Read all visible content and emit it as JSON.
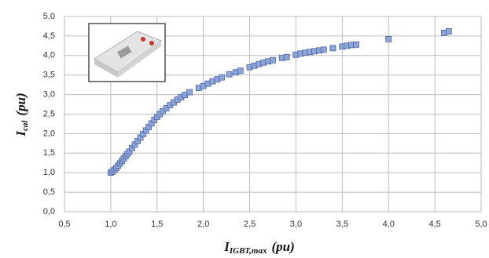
{
  "chart_data": {
    "type": "scatter",
    "xlabel": {
      "main": "I",
      "sub": "IGBT,max",
      "unit": "(pu)"
    },
    "ylabel": {
      "main": "I",
      "sub": "cal",
      "unit": "(pu)"
    },
    "x": [
      1.0,
      1.02,
      1.04,
      1.06,
      1.08,
      1.1,
      1.12,
      1.14,
      1.16,
      1.18,
      1.2,
      1.23,
      1.26,
      1.29,
      1.32,
      1.35,
      1.38,
      1.41,
      1.44,
      1.47,
      1.5,
      1.53,
      1.56,
      1.6,
      1.64,
      1.68,
      1.72,
      1.76,
      1.8,
      1.85,
      1.95,
      2.0,
      2.05,
      2.1,
      2.15,
      2.2,
      2.28,
      2.35,
      2.4,
      2.5,
      2.55,
      2.6,
      2.65,
      2.7,
      2.75,
      2.85,
      2.9,
      3.0,
      3.05,
      3.1,
      3.15,
      3.2,
      3.25,
      3.3,
      3.4,
      3.5,
      3.55,
      3.6,
      3.65,
      4.0,
      4.6,
      4.65
    ],
    "values": [
      1.0,
      1.03,
      1.07,
      1.12,
      1.18,
      1.24,
      1.3,
      1.36,
      1.42,
      1.48,
      1.54,
      1.63,
      1.72,
      1.81,
      1.9,
      1.99,
      2.08,
      2.17,
      2.26,
      2.35,
      2.43,
      2.5,
      2.57,
      2.65,
      2.73,
      2.8,
      2.87,
      2.93,
      2.99,
      3.06,
      3.17,
      3.22,
      3.28,
      3.34,
      3.39,
      3.44,
      3.52,
      3.57,
      3.61,
      3.7,
      3.74,
      3.78,
      3.82,
      3.85,
      3.88,
      3.94,
      3.96,
      4.02,
      4.05,
      4.07,
      4.09,
      4.11,
      4.13,
      4.15,
      4.19,
      4.23,
      4.25,
      4.27,
      4.28,
      4.42,
      4.58,
      4.62
    ],
    "color": "#8ea5d8",
    "edgecolor": "#4a64a8",
    "xlim": [
      0.5,
      5.0
    ],
    "ylim": [
      0.0,
      5.0
    ],
    "xticks": [
      {
        "value": 0.5,
        "label": "0,5"
      },
      {
        "value": 1.0,
        "label": "1,0"
      },
      {
        "value": 1.5,
        "label": "1,5"
      },
      {
        "value": 2.0,
        "label": "2,0"
      },
      {
        "value": 2.5,
        "label": "2,5"
      },
      {
        "value": 3.0,
        "label": "3,0"
      },
      {
        "value": 3.5,
        "label": "3,5"
      },
      {
        "value": 4.0,
        "label": "4,0"
      },
      {
        "value": 4.5,
        "label": "4,5"
      },
      {
        "value": 5.0,
        "label": "5,0"
      }
    ],
    "yticks": [
      {
        "value": 0.0,
        "label": "0,0"
      },
      {
        "value": 0.5,
        "label": "0,5"
      },
      {
        "value": 1.0,
        "label": "1,0"
      },
      {
        "value": 1.5,
        "label": "1,5"
      },
      {
        "value": 2.0,
        "label": "2,0"
      },
      {
        "value": 2.5,
        "label": "2,5"
      },
      {
        "value": 3.0,
        "label": "3,0"
      },
      {
        "value": 3.5,
        "label": "3,5"
      },
      {
        "value": 4.0,
        "label": "4,0"
      },
      {
        "value": 4.5,
        "label": "4,5"
      },
      {
        "value": 5.0,
        "label": "5,0"
      }
    ],
    "grid": true
  }
}
